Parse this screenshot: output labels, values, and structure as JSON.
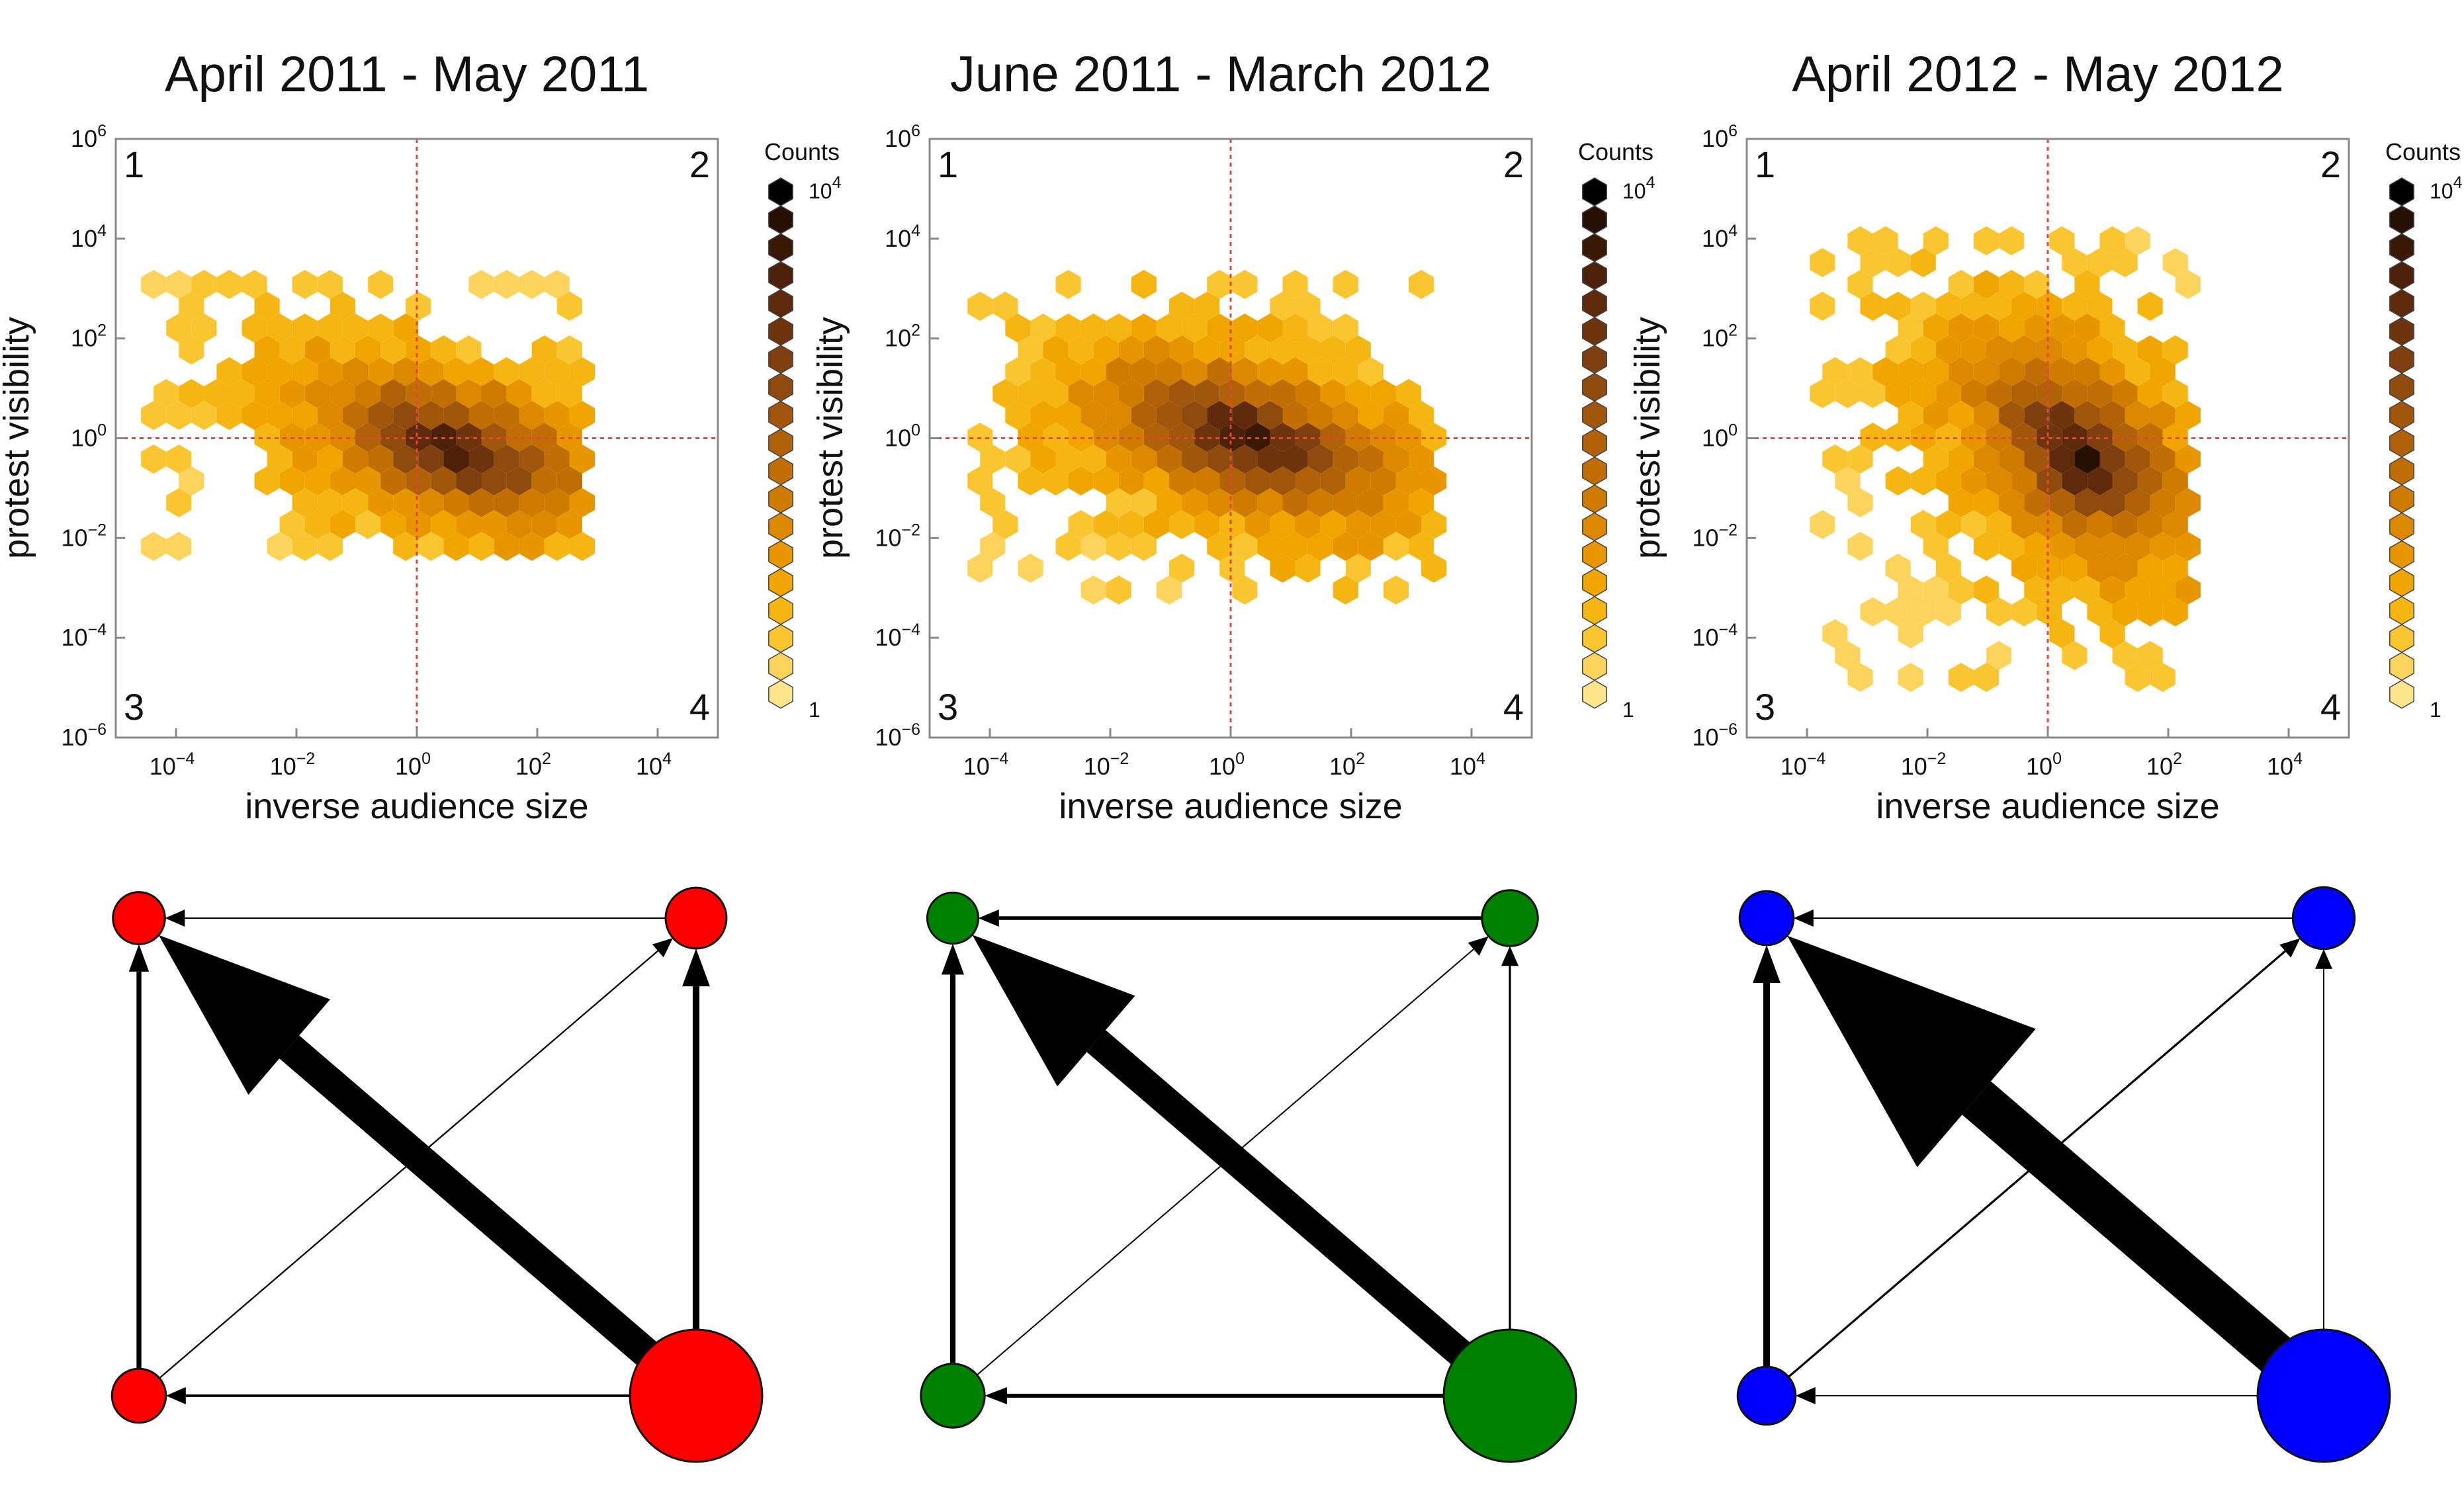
{
  "chart_data": [
    {
      "type": "heatmap",
      "title": "April 2011 - May 2011",
      "xlabel": "inverse audience size",
      "ylabel": "protest visibility",
      "x_scale": "log",
      "y_scale": "log",
      "xlim": [
        1e-05,
        100000.0
      ],
      "ylim": [
        1e-06,
        1000000.0
      ],
      "x_ticks": [
        {
          "base": "10",
          "exp": "−4"
        },
        {
          "base": "10",
          "exp": "−2"
        },
        {
          "base": "10",
          "exp": "0"
        },
        {
          "base": "10",
          "exp": "2"
        },
        {
          "base": "10",
          "exp": "4"
        }
      ],
      "x_tick_values": [
        -4,
        -2,
        0,
        2,
        4
      ],
      "y_ticks": [
        {
          "base": "10",
          "exp": "−6"
        },
        {
          "base": "10",
          "exp": "−4"
        },
        {
          "base": "10",
          "exp": "−2"
        },
        {
          "base": "10",
          "exp": "0"
        },
        {
          "base": "10",
          "exp": "2"
        },
        {
          "base": "10",
          "exp": "4"
        },
        {
          "base": "10",
          "exp": "6"
        }
      ],
      "y_tick_values": [
        -6,
        -4,
        -2,
        0,
        2,
        4,
        6
      ],
      "reference_lines": {
        "x": 1,
        "y": 1,
        "color": "#e8443a"
      },
      "quadrant_labels": [
        "1",
        "2",
        "3",
        "4"
      ],
      "colorbar": {
        "title": "Counts",
        "max_label": {
          "base": "10",
          "exp": "4"
        },
        "min_label": "1",
        "levels": 19
      },
      "density_peak": {
        "log10_x": 0.6,
        "log10_y": -0.2
      },
      "log_spread_x": 1.25,
      "log_spread_y": 0.85,
      "extent_log10_x": [
        -4.4,
        2.8
      ],
      "extent_log10_y": [
        -2.3,
        3.4
      ],
      "color_levels": 19
    },
    {
      "type": "heatmap",
      "title": "June 2011 - March 2012",
      "xlabel": "inverse audience size",
      "ylabel": "protest visibility",
      "x_scale": "log",
      "y_scale": "log",
      "xlim": [
        1e-05,
        100000.0
      ],
      "ylim": [
        1e-06,
        1000000.0
      ],
      "x_ticks": [
        {
          "base": "10",
          "exp": "−4"
        },
        {
          "base": "10",
          "exp": "−2"
        },
        {
          "base": "10",
          "exp": "0"
        },
        {
          "base": "10",
          "exp": "2"
        },
        {
          "base": "10",
          "exp": "4"
        }
      ],
      "x_tick_values": [
        -4,
        -2,
        0,
        2,
        4
      ],
      "y_ticks": [
        {
          "base": "10",
          "exp": "−6"
        },
        {
          "base": "10",
          "exp": "−4"
        },
        {
          "base": "10",
          "exp": "−2"
        },
        {
          "base": "10",
          "exp": "0"
        },
        {
          "base": "10",
          "exp": "2"
        },
        {
          "base": "10",
          "exp": "4"
        },
        {
          "base": "10",
          "exp": "6"
        }
      ],
      "y_tick_values": [
        -6,
        -4,
        -2,
        0,
        2,
        4,
        6
      ],
      "reference_lines": {
        "x": 1,
        "y": 1,
        "color": "#e8443a"
      },
      "quadrant_labels": [
        "1",
        "2",
        "3",
        "4"
      ],
      "colorbar": {
        "title": "Counts",
        "max_label": {
          "base": "10",
          "exp": "4"
        },
        "min_label": "1",
        "levels": 19
      },
      "density_peak": {
        "log10_x": 0.3,
        "log10_y": 0.0
      },
      "log_spread_x": 1.4,
      "log_spread_y": 0.9,
      "extent_log10_x": [
        -4.3,
        3.4
      ],
      "extent_log10_y": [
        -3.3,
        3.2
      ],
      "color_levels": 19
    },
    {
      "type": "heatmap",
      "title": "April 2012 - May 2012",
      "xlabel": "inverse audience size",
      "ylabel": "protest visibility",
      "x_scale": "log",
      "y_scale": "log",
      "xlim": [
        1e-05,
        100000.0
      ],
      "ylim": [
        1e-06,
        1000000.0
      ],
      "x_ticks": [
        {
          "base": "10",
          "exp": "−4"
        },
        {
          "base": "10",
          "exp": "−2"
        },
        {
          "base": "10",
          "exp": "0"
        },
        {
          "base": "10",
          "exp": "2"
        },
        {
          "base": "10",
          "exp": "4"
        }
      ],
      "x_tick_values": [
        -4,
        -2,
        0,
        2,
        4
      ],
      "y_ticks": [
        {
          "base": "10",
          "exp": "−6"
        },
        {
          "base": "10",
          "exp": "−4"
        },
        {
          "base": "10",
          "exp": "−2"
        },
        {
          "base": "10",
          "exp": "0"
        },
        {
          "base": "10",
          "exp": "2"
        },
        {
          "base": "10",
          "exp": "4"
        },
        {
          "base": "10",
          "exp": "6"
        }
      ],
      "y_tick_values": [
        -6,
        -4,
        -2,
        0,
        2,
        4,
        6
      ],
      "reference_lines": {
        "x": 1,
        "y": 1,
        "color": "#e8443a"
      },
      "quadrant_labels": [
        "1",
        "2",
        "3",
        "4"
      ],
      "colorbar": {
        "title": "Counts",
        "max_label": {
          "base": "10",
          "exp": "4"
        },
        "min_label": "1",
        "levels": 19
      },
      "density_peak": {
        "log10_x": 0.5,
        "log10_y": -0.3
      },
      "log_spread_x": 1.05,
      "log_spread_y": 1.2,
      "extent_log10_x": [
        -3.8,
        2.5
      ],
      "extent_log10_y": [
        -5.0,
        4.3
      ],
      "color_levels": 19
    }
  ],
  "networks": [
    {
      "color": "#ff0000",
      "node_weights": {
        "1": 0.18,
        "2": 0.27,
        "3": 0.2,
        "4": 1.0
      },
      "edges": [
        {
          "from": "4",
          "to": "1",
          "weight": 1.0
        },
        {
          "from": "4",
          "to": "2",
          "weight": 0.22
        },
        {
          "from": "3",
          "to": "1",
          "weight": 0.16
        },
        {
          "from": "3",
          "to": "2",
          "weight": 0.05
        },
        {
          "from": "4",
          "to": "3",
          "weight": 0.08
        },
        {
          "from": "2",
          "to": "1",
          "weight": 0.04
        }
      ]
    },
    {
      "color": "#008000",
      "node_weights": {
        "1": 0.17,
        "2": 0.22,
        "3": 0.3,
        "4": 1.0
      },
      "edges": [
        {
          "from": "4",
          "to": "1",
          "weight": 0.95
        },
        {
          "from": "4",
          "to": "2",
          "weight": 0.07
        },
        {
          "from": "3",
          "to": "1",
          "weight": 0.18
        },
        {
          "from": "3",
          "to": "2",
          "weight": 0.02
        },
        {
          "from": "4",
          "to": "3",
          "weight": 0.13
        },
        {
          "from": "2",
          "to": "1",
          "weight": 0.12
        }
      ]
    },
    {
      "color": "#0000ff",
      "node_weights": {
        "1": 0.2,
        "2": 0.28,
        "3": 0.24,
        "4": 1.0
      },
      "edges": [
        {
          "from": "4",
          "to": "1",
          "weight": 1.45
        },
        {
          "from": "4",
          "to": "2",
          "weight": 0.04
        },
        {
          "from": "3",
          "to": "1",
          "weight": 0.22
        },
        {
          "from": "3",
          "to": "2",
          "weight": 0.07
        },
        {
          "from": "4",
          "to": "3",
          "weight": 0.02
        },
        {
          "from": "2",
          "to": "1",
          "weight": 0.02
        }
      ]
    }
  ],
  "colors": {
    "scale": [
      "#fde58c",
      "#fcd45d",
      "#f9c531",
      "#f5b512",
      "#f0a500",
      "#e79600",
      "#dc8800",
      "#cf7b00",
      "#c06e05",
      "#b16208",
      "#a0560b",
      "#8f4a0d",
      "#7f3f0e",
      "#6e340d",
      "#5e2a0b",
      "#4d2109",
      "#3a1806",
      "#260f03",
      "#000000"
    ],
    "ref_line": "#e8443a",
    "axis": "#888888"
  }
}
